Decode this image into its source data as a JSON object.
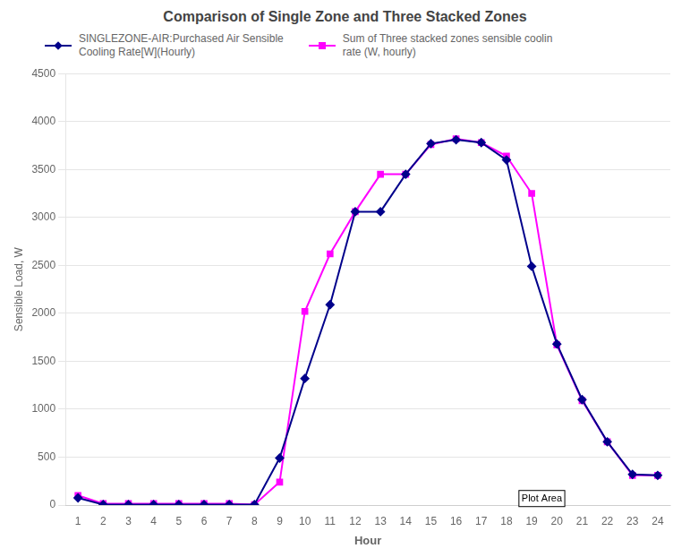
{
  "chart_data": {
    "type": "line",
    "title": "Comparison of Single Zone and Three Stacked Zones",
    "xlabel": "Hour",
    "ylabel": "Sensible Load, W",
    "x": [
      1,
      2,
      3,
      4,
      5,
      6,
      7,
      8,
      9,
      10,
      11,
      12,
      13,
      14,
      15,
      16,
      17,
      18,
      19,
      20,
      21,
      22,
      23,
      24
    ],
    "series": [
      {
        "name": "SINGLEZONE-AIR:Purchased Air Sensible\nCooling Rate[W](Hourly)",
        "color": "#00008b",
        "marker": "diamond",
        "values": [
          75,
          5,
          5,
          5,
          5,
          5,
          5,
          5,
          490,
          1320,
          2090,
          3060,
          3060,
          3450,
          3770,
          3810,
          3780,
          3600,
          2490,
          1680,
          1100,
          660,
          320,
          310
        ]
      },
      {
        "name": "Sum of Three stacked zones sensible coolin\nrate (W, hourly)",
        "color": "#ff00ff",
        "marker": "square",
        "values": [
          100,
          15,
          15,
          15,
          15,
          15,
          15,
          5,
          240,
          2020,
          2620,
          3060,
          3450,
          3450,
          3760,
          3820,
          3780,
          3640,
          3250,
          1670,
          1090,
          660,
          310,
          310
        ]
      }
    ],
    "xlim": [
      0.5,
      24.5
    ],
    "xticks": [
      1,
      2,
      3,
      4,
      5,
      6,
      7,
      8,
      9,
      10,
      11,
      12,
      13,
      14,
      15,
      16,
      17,
      18,
      19,
      20,
      21,
      22,
      23,
      24
    ],
    "ylim": [
      0,
      4500
    ],
    "yticks": [
      0,
      500,
      1000,
      1500,
      2000,
      2500,
      3000,
      3500,
      4000,
      4500
    ],
    "grid": "y",
    "legend": "upper left",
    "annotations": [
      {
        "text": "Plot Area",
        "x": 18.6,
        "y": 40
      }
    ]
  }
}
